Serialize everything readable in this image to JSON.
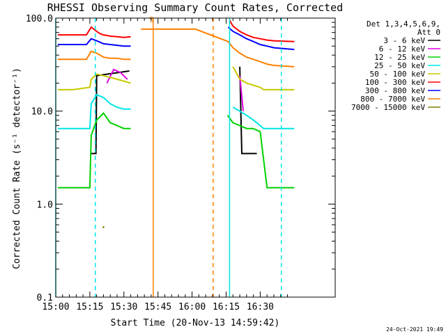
{
  "chart_data": {
    "type": "line",
    "title": "RHESSI Observing Summary Count Rates, Corrected",
    "xlabel": "Start Time (20-Nov-13 14:59:42)",
    "ylabel": "Corrected Count Rate (s⁻¹ detector⁻¹)",
    "yscale": "log",
    "ylim": [
      0.1,
      100.0
    ],
    "xlim_minutes_after_15_00": [
      0,
      41
    ],
    "x_ticks": [
      {
        "t": 0,
        "label": "15:00"
      },
      {
        "t": 5,
        "label": "15:15"
      },
      {
        "t": 10,
        "label": "15:30"
      },
      {
        "t": 15,
        "label": "15:45"
      },
      {
        "t": 20,
        "label": "16:00"
      },
      {
        "t": 25,
        "label": "16:15"
      },
      {
        "t": 30,
        "label": "16:30"
      }
    ],
    "y_ticks": [
      {
        "v": 0.1,
        "label": "0.1"
      },
      {
        "v": 1.0,
        "label": "1.0"
      },
      {
        "v": 10.0,
        "label": "10.0"
      },
      {
        "v": 100.0,
        "label": "100.0"
      }
    ],
    "legend_header": [
      "Det 1,3,4,5,6,9,",
      "Att 0"
    ],
    "legend_position": "right",
    "series": [
      {
        "name": "3 - 6 keV",
        "color": "#000000",
        "x": [
          5.2,
          5.9,
          6.0,
          10.8,
          11.0,
          26.0,
          27.0,
          27.3,
          29.5,
          30.5
        ],
        "y": [
          3.5,
          3.5,
          24,
          27,
          null,
          null,
          30,
          3.5,
          3.5,
          null
        ]
      },
      {
        "name": "6 - 12 keV",
        "color": "#e000e0",
        "x": [
          7.5,
          8.5,
          9.5,
          10.5,
          11.0,
          26.0,
          27.0,
          27.5,
          29.5,
          30.5
        ],
        "y": [
          20,
          28,
          26,
          22,
          null,
          null,
          24,
          10,
          null,
          null
        ]
      },
      {
        "name": "12 - 25 keV",
        "color": "#00d000",
        "x": [
          0.3,
          5.0,
          5.2,
          6.0,
          7.0,
          8.0,
          9.0,
          10.0,
          11.0,
          12.0,
          15.0,
          25.2,
          26.0,
          27.0,
          28.0,
          29.0,
          30.0,
          31.0,
          31.5,
          33.0,
          35.0
        ],
        "y": [
          1.5,
          1.5,
          5.5,
          8.0,
          9.5,
          7.5,
          7.0,
          6.5,
          6.5,
          null,
          null,
          9,
          7.5,
          7.0,
          6.5,
          6.5,
          6.0,
          1.5,
          1.5,
          1.5,
          1.5
        ]
      },
      {
        "name": "25 - 50 keV",
        "color": "#00e5e5",
        "x": [
          0.3,
          3.0,
          5.0,
          5.2,
          6.0,
          7.0,
          8.0,
          9.0,
          10.0,
          11.0,
          12.0,
          26.0,
          27.0,
          28.0,
          29.0,
          30.0,
          30.5,
          32.0,
          35.0
        ],
        "y": [
          6.5,
          6.5,
          6.5,
          12,
          15,
          14,
          12,
          11,
          10.5,
          10.5,
          null,
          11,
          10,
          9,
          8,
          7,
          6.5,
          6.5,
          6.5
        ]
      },
      {
        "name": "50 - 100 keV",
        "color": "#c8c800",
        "x": [
          0.3,
          2.5,
          5.0,
          5.2,
          6.0,
          7.0,
          8.0,
          9.0,
          10.0,
          11.0,
          12.0,
          26.0,
          27.0,
          28.0,
          29.0,
          30.0,
          30.5,
          32.0,
          35.0
        ],
        "y": [
          17,
          17,
          18,
          22,
          25,
          24,
          23,
          22,
          21,
          20,
          null,
          30,
          22,
          20,
          19,
          18,
          17,
          17,
          17
        ]
      },
      {
        "name": "100 - 300 keV",
        "color": "#ff0000",
        "x": [
          0.3,
          2.0,
          4.5,
          5.2,
          6.0,
          6.5,
          7.0,
          8.0,
          9.0,
          10.0,
          11.0,
          12.0,
          25.3,
          25.5,
          26.0,
          27.0,
          28.0,
          29.0,
          30.0,
          31.0,
          32.0,
          35.0
        ],
        "y": [
          66,
          66,
          66,
          80,
          72,
          68,
          66,
          64,
          63,
          62,
          63,
          null,
          null,
          95,
          82,
          72,
          66,
          62,
          60,
          58,
          57,
          56
        ]
      },
      {
        "name": "300 - 800 keV",
        "color": "#0000ff",
        "x": [
          0.3,
          2.0,
          4.5,
          5.2,
          6.0,
          6.5,
          7.0,
          8.0,
          9.0,
          10.0,
          11.0,
          12.0,
          25.3,
          26.0,
          27.0,
          28.0,
          29.0,
          30.0,
          31.0,
          32.0,
          35.0
        ],
        "y": [
          52,
          52,
          52,
          60,
          57,
          55,
          53,
          52,
          51,
          50,
          50,
          null,
          80,
          72,
          66,
          60,
          56,
          52,
          50,
          48,
          46
        ]
      },
      {
        "name": "800 - 7000 keV",
        "color": "#ff7f00",
        "x": [
          0.3,
          2.0,
          4.5,
          5.2,
          6.0,
          6.5,
          7.0,
          8.0,
          9.0,
          10.0,
          11.0,
          12.0,
          12.5,
          14.5,
          20.5,
          25.3,
          26.0,
          27.0,
          28.0,
          29.0,
          30.0,
          31.0,
          32.0,
          35.0
        ],
        "y": [
          36,
          36,
          36,
          44,
          42,
          40,
          38,
          37,
          37,
          36,
          36,
          null,
          76,
          76,
          76,
          56,
          48,
          42,
          38,
          36,
          34,
          32,
          31,
          30
        ]
      },
      {
        "name": "7000 - 15000 keV",
        "color": "#808000",
        "x": [
          7.0,
          7.0
        ],
        "y": [
          0.55,
          0.58
        ]
      }
    ],
    "vertical_markers": [
      {
        "t": 0.0,
        "color": "#00e5e5",
        "style": "solid"
      },
      {
        "t": 5.8,
        "color": "#00e5e5",
        "style": "dashed"
      },
      {
        "t": 25.5,
        "color": "#00e5e5",
        "style": "solid"
      },
      {
        "t": 33.1,
        "color": "#00e5e5",
        "style": "dashed"
      },
      {
        "t": 14.3,
        "color": "#ff7f00",
        "style": "solid"
      },
      {
        "t": 23.1,
        "color": "#ff7f00",
        "style": "dashed"
      }
    ],
    "annotations": [
      {
        "t": 13.7,
        "v": 90,
        "text": "S",
        "color": "#ff7f00"
      }
    ],
    "footer_timestamp": "24-Oct-2021 19:49"
  }
}
